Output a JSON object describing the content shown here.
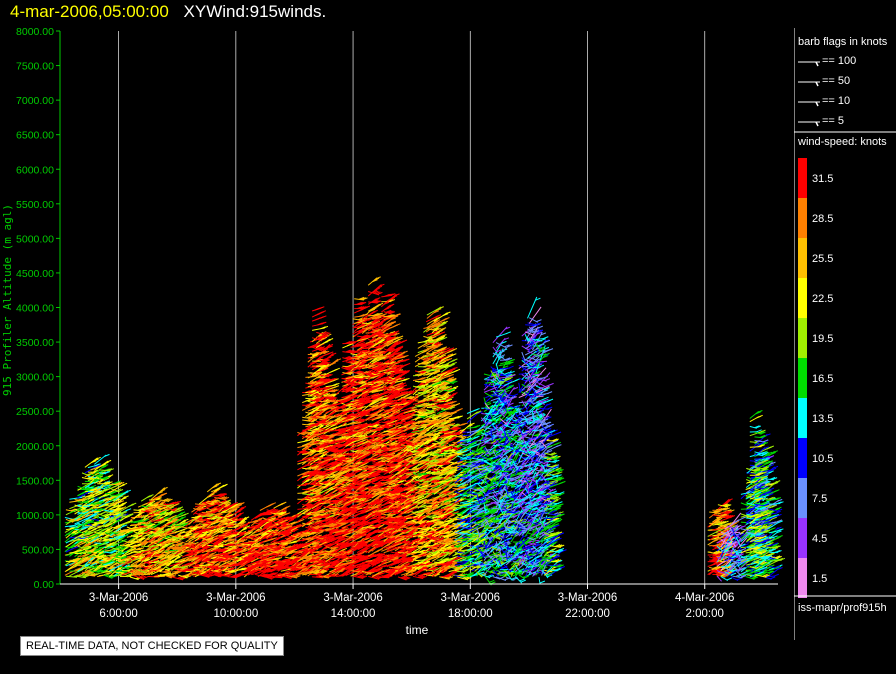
{
  "header": {
    "timestamp": "4-mar-2006,05:00:00",
    "title": "XYWind:915winds."
  },
  "chart_data": {
    "type": "scatter",
    "marker": "wind-barb",
    "ylabel": "915 Profiler Altitude (m agl)",
    "xlabel": "time",
    "ylim": [
      0,
      8000
    ],
    "yticks": [
      "0.00",
      "500.00",
      "1000.00",
      "1500.00",
      "2000.00",
      "2500.00",
      "3000.00",
      "3500.00",
      "4000.00",
      "4500.00",
      "5000.00",
      "5500.00",
      "6000.00",
      "6500.00",
      "7000.00",
      "7500.00",
      "8000.00"
    ],
    "x_range_hours": [
      4.0,
      28.5
    ],
    "xticks": [
      {
        "hour": 6,
        "date": "3-Mar-2006",
        "time": "6:00:00"
      },
      {
        "hour": 10,
        "date": "3-Mar-2006",
        "time": "10:00:00"
      },
      {
        "hour": 14,
        "date": "3-Mar-2006",
        "time": "14:00:00"
      },
      {
        "hour": 18,
        "date": "3-Mar-2006",
        "time": "18:00:00"
      },
      {
        "hour": 22,
        "date": "3-Mar-2006",
        "time": "22:00:00"
      },
      {
        "hour": 26,
        "date": "4-Mar-2006",
        "time": "2:00:00"
      }
    ],
    "grid": "vertical",
    "series": [
      {
        "from_hour": 4.1,
        "to_hour": 6.1,
        "top_m": 1800,
        "speed": 21
      },
      {
        "from_hour": 6.1,
        "to_hour": 8.1,
        "top_m": 1350,
        "speed": 26
      },
      {
        "from_hour": 8.1,
        "to_hour": 10.1,
        "top_m": 1400,
        "speed": 30
      },
      {
        "from_hour": 10.1,
        "to_hour": 12.1,
        "top_m": 1200,
        "speed": 33
      },
      {
        "from_hour": 12.1,
        "to_hour": 13.2,
        "top_m": 4000,
        "speed": 31
      },
      {
        "from_hour": 13.2,
        "to_hour": 15.8,
        "top_m": 4450,
        "speed": 33
      },
      {
        "from_hour": 15.8,
        "to_hour": 17.4,
        "top_m": 4000,
        "speed": 27
      },
      {
        "from_hour": 17.4,
        "to_hour": 18.2,
        "top_m": 2600,
        "speed": 16
      },
      {
        "from_hour": 18.2,
        "to_hour": 19.5,
        "top_m": 3800,
        "speed": 13
      },
      {
        "from_hour": 19.5,
        "to_hour": 20.5,
        "top_m": 4250,
        "speed": 11
      },
      {
        "from_hour": 20.5,
        "to_hour": 20.8,
        "top_m": 2500,
        "speed": 17
      },
      {
        "from_hour": 26.0,
        "to_hour": 26.7,
        "top_m": 1300,
        "speed": 29
      },
      {
        "from_hour": 26.4,
        "to_hour": 27.2,
        "top_m": 1000,
        "speed": 9
      },
      {
        "from_hour": 27.2,
        "to_hour": 28.2,
        "top_m": 2100,
        "speed": 16
      },
      {
        "from_hour": 27.4,
        "to_hour": 27.8,
        "top_m": 2650,
        "speed": 17
      }
    ]
  },
  "legend": {
    "barb_title": "barb flags in knots",
    "barbs": [
      {
        "label": "== 100",
        "knots": 100
      },
      {
        "label": "== 50",
        "knots": 50
      },
      {
        "label": "== 10",
        "knots": 10
      },
      {
        "label": "== 5",
        "knots": 5
      }
    ],
    "colorbar_title": "wind-speed: knots",
    "colorbar": [
      {
        "label": "31.5",
        "color": "#ff0000"
      },
      {
        "label": "28.5",
        "color": "#ff8000"
      },
      {
        "label": "25.5",
        "color": "#ffc000"
      },
      {
        "label": "22.5",
        "color": "#ffff00"
      },
      {
        "label": "19.5",
        "color": "#a0f000"
      },
      {
        "label": "16.5",
        "color": "#00dd00"
      },
      {
        "label": "13.5",
        "color": "#00ffff"
      },
      {
        "label": "10.5",
        "color": "#0000ff"
      },
      {
        "label": "7.5",
        "color": "#6a90ff"
      },
      {
        "label": "4.5",
        "color": "#9933ff"
      },
      {
        "label": "1.5",
        "color": "#ee88ee"
      }
    ],
    "source": "iss-mapr/prof915h"
  },
  "qc_note": "REAL-TIME DATA, NOT CHECKED FOR QUALITY",
  "colors": {
    "axis": "#00cc00",
    "grid": "#d8d8d8",
    "ylabel": "#00cc00"
  }
}
